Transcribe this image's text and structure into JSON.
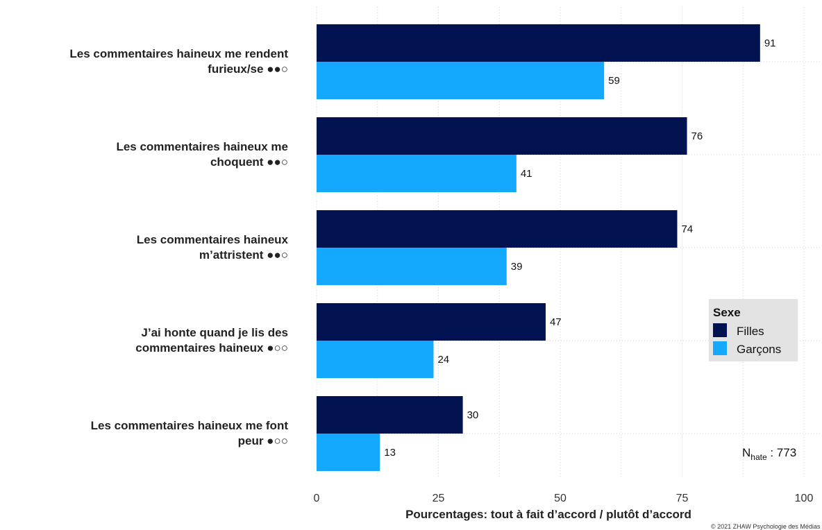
{
  "chart_data": {
    "type": "bar",
    "orientation": "horizontal",
    "categories": [
      [
        "Les commentaires haineux me rendent",
        "furieux/se ●●○"
      ],
      [
        "Les commentaires haineux me",
        "choquent ●●○"
      ],
      [
        "Les commentaires haineux",
        "m’attristent ●●○"
      ],
      [
        "J’ai honte quand je lis des",
        "commentaires haineux ●○○"
      ],
      [
        "Les commentaires haineux me font",
        "peur ●○○"
      ]
    ],
    "series": [
      {
        "name": "Filles",
        "color": "#00124F",
        "values": [
          91,
          76,
          74,
          47,
          30
        ]
      },
      {
        "name": "Garçons",
        "color": "#14A9FF",
        "values": [
          59,
          41,
          39,
          24,
          13
        ]
      }
    ],
    "xlabel": "Pourcentages: tout à fait d’accord  / plutôt d’accord",
    "xlim": [
      0,
      100
    ],
    "xticks": [
      0,
      25,
      50,
      75,
      100
    ],
    "grid": true,
    "legend": {
      "title": "Sexe",
      "placement": "right"
    },
    "annotations": {
      "n_main": "N",
      "n_sub": "hate",
      "n_value": " : 773",
      "copyright": "© 2021 ZHAW Psychologie des Médias"
    }
  }
}
